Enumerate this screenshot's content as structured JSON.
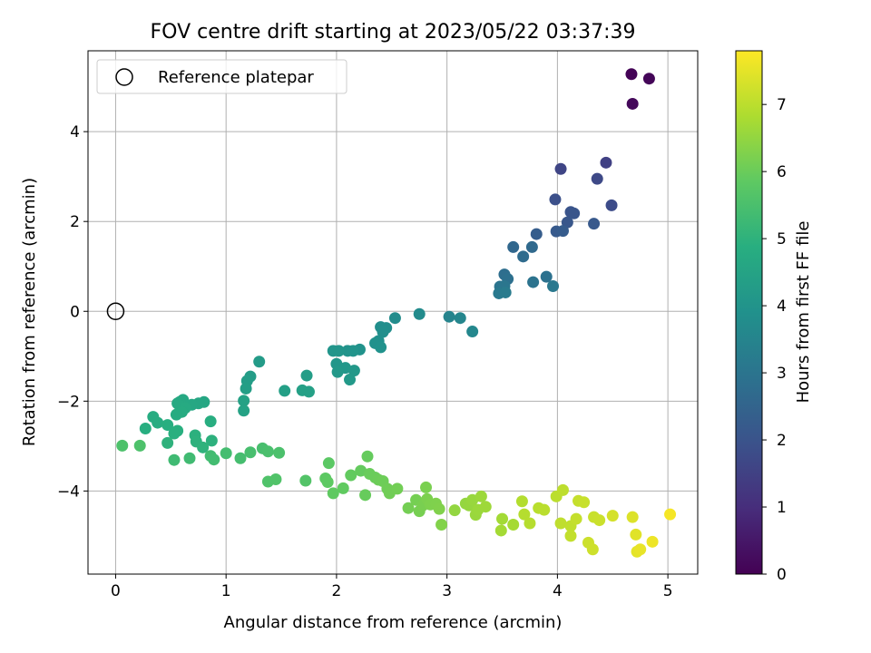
{
  "chart_data": {
    "type": "scatter",
    "title": "FOV centre drift starting at 2023/05/22 03:37:39",
    "xlabel": "Angular distance from reference (arcmin)",
    "ylabel": "Rotation from reference (arcmin)",
    "xlim": [
      -0.25,
      5.27
    ],
    "ylim": [
      -5.85,
      5.8
    ],
    "x_ticks": [
      0,
      1,
      2,
      3,
      4,
      5
    ],
    "y_ticks": [
      -4,
      -2,
      0,
      2,
      4
    ],
    "x_tick_labels": [
      "0",
      "1",
      "2",
      "3",
      "4",
      "5"
    ],
    "y_tick_labels": [
      "−4",
      "−2",
      "0",
      "2",
      "4"
    ],
    "grid": true,
    "legend": {
      "position": "top-left",
      "label": "Reference platepar"
    },
    "reference_point": {
      "x": 0,
      "y": 0
    },
    "colorbar": {
      "label": "Hours from first FF file",
      "range": [
        0,
        7.8
      ],
      "ticks": [
        0,
        1,
        2,
        3,
        4,
        5,
        6,
        7
      ],
      "tick_labels": [
        "0",
        "1",
        "2",
        "3",
        "4",
        "5",
        "6",
        "7"
      ],
      "colormap": "viridis"
    },
    "points": [
      [
        4.67,
        5.28,
        0.05
      ],
      [
        4.83,
        5.18,
        0.1
      ],
      [
        4.68,
        4.62,
        0.15
      ],
      [
        4.44,
        3.31,
        1.5
      ],
      [
        4.03,
        3.17,
        1.6
      ],
      [
        4.36,
        2.95,
        1.7
      ],
      [
        4.49,
        2.36,
        1.8
      ],
      [
        3.98,
        2.49,
        1.9
      ],
      [
        4.12,
        2.21,
        2.0
      ],
      [
        4.15,
        2.18,
        2.05
      ],
      [
        4.09,
        1.98,
        2.1
      ],
      [
        4.33,
        1.95,
        2.15
      ],
      [
        3.99,
        1.78,
        2.2
      ],
      [
        4.05,
        1.79,
        2.25
      ],
      [
        3.81,
        1.72,
        2.3
      ],
      [
        3.6,
        1.43,
        2.6
      ],
      [
        3.77,
        1.43,
        2.65
      ],
      [
        3.69,
        1.22,
        2.7
      ],
      [
        3.52,
        0.82,
        2.8
      ],
      [
        3.55,
        0.72,
        2.85
      ],
      [
        3.9,
        0.77,
        2.9
      ],
      [
        3.78,
        0.65,
        2.95
      ],
      [
        3.48,
        0.55,
        3.0
      ],
      [
        3.52,
        0.56,
        3.05
      ],
      [
        3.96,
        0.56,
        3.1
      ],
      [
        3.47,
        0.4,
        3.15
      ],
      [
        3.53,
        0.42,
        3.2
      ],
      [
        3.02,
        -0.12,
        3.5
      ],
      [
        3.12,
        -0.15,
        3.55
      ],
      [
        3.23,
        -0.45,
        3.6
      ],
      [
        2.75,
        -0.06,
        3.7
      ],
      [
        2.53,
        -0.15,
        3.75
      ],
      [
        2.4,
        -0.35,
        3.8
      ],
      [
        2.45,
        -0.37,
        3.82
      ],
      [
        2.42,
        -0.46,
        3.85
      ],
      [
        2.38,
        -0.66,
        3.88
      ],
      [
        2.35,
        -0.71,
        3.9
      ],
      [
        2.4,
        -0.8,
        3.92
      ],
      [
        2.21,
        -0.85,
        3.95
      ],
      [
        2.1,
        -0.88,
        3.97
      ],
      [
        2.15,
        -0.88,
        4.0
      ],
      [
        1.97,
        -0.88,
        4.02
      ],
      [
        2.02,
        -0.88,
        4.05
      ],
      [
        2.0,
        -1.17,
        4.07
      ],
      [
        2.08,
        -1.26,
        4.1
      ],
      [
        2.16,
        -1.32,
        4.12
      ],
      [
        2.01,
        -1.35,
        4.15
      ],
      [
        2.12,
        -1.52,
        4.18
      ],
      [
        1.3,
        -1.12,
        4.25
      ],
      [
        1.22,
        -1.45,
        4.28
      ],
      [
        1.19,
        -1.55,
        4.3
      ],
      [
        1.73,
        -1.43,
        4.32
      ],
      [
        1.18,
        -1.72,
        4.35
      ],
      [
        1.53,
        -1.77,
        4.37
      ],
      [
        1.69,
        -1.76,
        4.4
      ],
      [
        1.75,
        -1.79,
        4.42
      ],
      [
        1.16,
        -1.99,
        4.45
      ],
      [
        1.16,
        -2.21,
        4.47
      ],
      [
        0.8,
        -2.02,
        4.6
      ],
      [
        0.75,
        -2.05,
        4.62
      ],
      [
        0.69,
        -2.08,
        4.64
      ],
      [
        0.61,
        -1.97,
        4.66
      ],
      [
        0.58,
        -2.02,
        4.68
      ],
      [
        0.56,
        -2.05,
        4.7
      ],
      [
        0.58,
        -2.1,
        4.72
      ],
      [
        0.63,
        -2.15,
        4.74
      ],
      [
        0.6,
        -2.24,
        4.76
      ],
      [
        0.55,
        -2.3,
        4.78
      ],
      [
        0.34,
        -2.35,
        4.8
      ],
      [
        0.38,
        -2.48,
        4.82
      ],
      [
        0.86,
        -2.45,
        4.84
      ],
      [
        0.47,
        -2.53,
        4.86
      ],
      [
        0.27,
        -2.61,
        4.88
      ],
      [
        0.56,
        -2.66,
        4.9
      ],
      [
        0.53,
        -2.72,
        4.92
      ],
      [
        0.72,
        -2.76,
        4.94
      ],
      [
        0.87,
        -2.88,
        4.96
      ],
      [
        0.73,
        -2.9,
        4.98
      ],
      [
        0.47,
        -2.93,
        5.0
      ],
      [
        0.79,
        -3.03,
        5.02
      ],
      [
        0.53,
        -3.31,
        5.3
      ],
      [
        0.67,
        -3.27,
        5.32
      ],
      [
        0.86,
        -3.22,
        5.35
      ],
      [
        0.89,
        -3.3,
        5.37
      ],
      [
        1.0,
        -3.16,
        5.4
      ],
      [
        1.13,
        -3.27,
        5.42
      ],
      [
        1.22,
        -3.14,
        5.45
      ],
      [
        1.33,
        -3.05,
        5.47
      ],
      [
        1.38,
        -3.12,
        5.5
      ],
      [
        1.48,
        -3.15,
        5.52
      ],
      [
        0.06,
        -2.99,
        5.55
      ],
      [
        0.22,
        -2.99,
        5.57
      ],
      [
        1.38,
        -3.79,
        5.6
      ],
      [
        1.45,
        -3.74,
        5.62
      ],
      [
        1.72,
        -3.77,
        5.65
      ],
      [
        1.93,
        -3.38,
        5.8
      ],
      [
        1.9,
        -3.72,
        5.82
      ],
      [
        1.92,
        -3.8,
        5.84
      ],
      [
        1.97,
        -4.05,
        5.86
      ],
      [
        2.06,
        -3.94,
        5.88
      ],
      [
        2.13,
        -3.65,
        5.9
      ],
      [
        2.22,
        -3.55,
        5.92
      ],
      [
        2.28,
        -3.23,
        5.94
      ],
      [
        2.26,
        -4.09,
        5.96
      ],
      [
        2.3,
        -3.62,
        5.98
      ],
      [
        2.35,
        -3.7,
        6.0
      ],
      [
        2.38,
        -3.75,
        6.02
      ],
      [
        2.42,
        -3.78,
        6.04
      ],
      [
        2.46,
        -3.95,
        6.06
      ],
      [
        2.48,
        -4.05,
        6.08
      ],
      [
        2.55,
        -3.95,
        6.1
      ],
      [
        2.65,
        -4.38,
        6.12
      ],
      [
        2.72,
        -4.2,
        6.14
      ],
      [
        2.75,
        -4.45,
        6.16
      ],
      [
        2.78,
        -4.32,
        6.18
      ],
      [
        2.81,
        -3.92,
        6.2
      ],
      [
        2.82,
        -4.18,
        6.22
      ],
      [
        2.85,
        -4.3,
        6.24
      ],
      [
        2.9,
        -4.28,
        6.26
      ],
      [
        2.93,
        -4.4,
        6.28
      ],
      [
        2.95,
        -4.75,
        6.3
      ],
      [
        3.07,
        -4.43,
        6.5
      ],
      [
        3.17,
        -4.28,
        6.52
      ],
      [
        3.2,
        -4.32,
        6.54
      ],
      [
        3.23,
        -4.2,
        6.56
      ],
      [
        3.26,
        -4.53,
        6.58
      ],
      [
        3.28,
        -4.42,
        6.6
      ],
      [
        3.31,
        -4.12,
        6.62
      ],
      [
        3.35,
        -4.35,
        6.64
      ],
      [
        3.5,
        -4.62,
        6.7
      ],
      [
        3.49,
        -4.88,
        6.72
      ],
      [
        3.6,
        -4.75,
        6.74
      ],
      [
        3.68,
        -4.23,
        6.9
      ],
      [
        3.7,
        -4.52,
        6.92
      ],
      [
        3.75,
        -4.72,
        6.94
      ],
      [
        3.83,
        -4.38,
        6.96
      ],
      [
        3.88,
        -4.42,
        6.98
      ],
      [
        3.99,
        -4.12,
        7.0
      ],
      [
        4.05,
        -3.98,
        7.02
      ],
      [
        4.03,
        -4.72,
        7.04
      ],
      [
        4.12,
        -4.78,
        7.06
      ],
      [
        4.12,
        -5.0,
        7.08
      ],
      [
        4.17,
        -4.62,
        7.1
      ],
      [
        4.19,
        -4.22,
        7.12
      ],
      [
        4.24,
        -4.25,
        7.14
      ],
      [
        4.33,
        -4.58,
        7.16
      ],
      [
        4.38,
        -4.65,
        7.18
      ],
      [
        4.28,
        -5.15,
        7.2
      ],
      [
        4.32,
        -5.3,
        7.22
      ],
      [
        4.5,
        -4.55,
        7.3
      ],
      [
        4.68,
        -4.58,
        7.4
      ],
      [
        4.71,
        -4.97,
        7.45
      ],
      [
        4.72,
        -5.35,
        7.5
      ],
      [
        4.75,
        -5.3,
        7.55
      ],
      [
        4.86,
        -5.13,
        7.6
      ],
      [
        5.02,
        -4.52,
        7.7
      ]
    ]
  }
}
